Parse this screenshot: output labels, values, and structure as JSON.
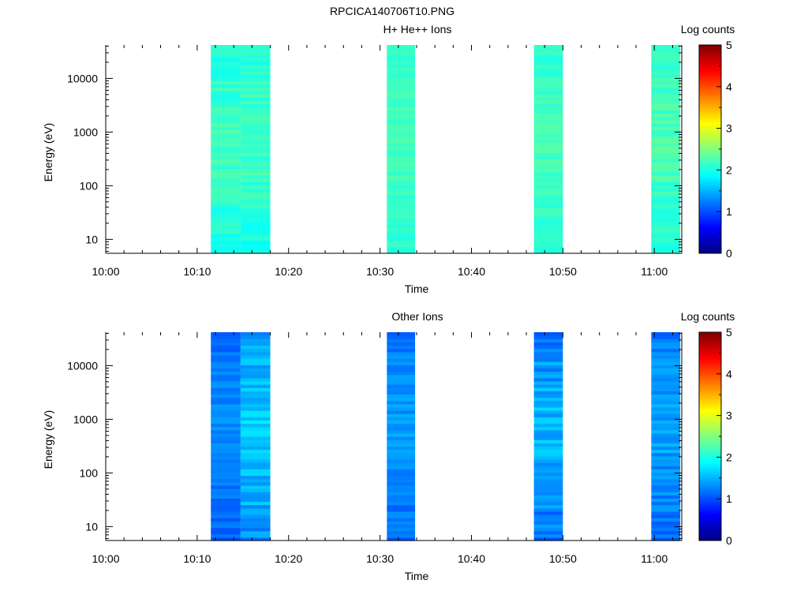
{
  "title": "RPCICA140706T10.PNG",
  "colorbar": {
    "label": "Log counts",
    "ticks": [
      "0",
      "1",
      "2",
      "3",
      "4",
      "5"
    ],
    "min": 0,
    "max": 5,
    "colormap": "jet"
  },
  "chart_data": [
    {
      "type": "heatmap",
      "title": "H+ He++ Ions",
      "xlabel": "Time",
      "ylabel": "Energy (eV)",
      "yscale": "log",
      "ylim": [
        5.5,
        42000
      ],
      "xlim": [
        "10:00",
        "11:03"
      ],
      "xticks": [
        "10:00",
        "10:10",
        "10:20",
        "10:30",
        "10:40",
        "10:50",
        "11:00"
      ],
      "yticks": [
        "10",
        "100",
        "1000",
        "10000"
      ],
      "colorbar_label": "Log counts",
      "color_range": [
        0,
        5
      ],
      "time_bins": [
        {
          "start": "10:11:30",
          "end": "10:14:45",
          "low": 1.75,
          "high": 2.3
        },
        {
          "start": "10:14:45",
          "end": "10:18:00",
          "low": 1.75,
          "high": 2.3
        },
        {
          "start": "10:30:45",
          "end": "10:33:50",
          "low": 1.9,
          "high": 2.3
        },
        {
          "start": "10:46:50",
          "end": "10:50:00",
          "low": 1.9,
          "high": 2.3
        },
        {
          "start": "10:59:40",
          "end": "11:02:50",
          "low": 1.8,
          "high": 2.35
        }
      ]
    },
    {
      "type": "heatmap",
      "title": "Other Ions",
      "xlabel": "Time",
      "ylabel": "Energy (eV)",
      "yscale": "log",
      "ylim": [
        5.5,
        42000
      ],
      "xlim": [
        "10:00",
        "11:03"
      ],
      "xticks": [
        "10:00",
        "10:10",
        "10:20",
        "10:30",
        "10:40",
        "10:50",
        "11:00"
      ],
      "yticks": [
        "10",
        "100",
        "1000",
        "10000"
      ],
      "colorbar_label": "Log counts",
      "color_range": [
        0,
        5
      ],
      "time_bins": [
        {
          "start": "10:11:30",
          "end": "10:14:45",
          "low": 0.9,
          "high": 1.4
        },
        {
          "start": "10:14:45",
          "end": "10:18:00",
          "low": 1.0,
          "high": 1.8
        },
        {
          "start": "10:30:45",
          "end": "10:33:50",
          "low": 0.9,
          "high": 1.5
        },
        {
          "start": "10:46:50",
          "end": "10:50:00",
          "low": 0.8,
          "high": 1.7
        },
        {
          "start": "10:59:40",
          "end": "11:02:50",
          "low": 0.9,
          "high": 1.55
        }
      ]
    }
  ]
}
